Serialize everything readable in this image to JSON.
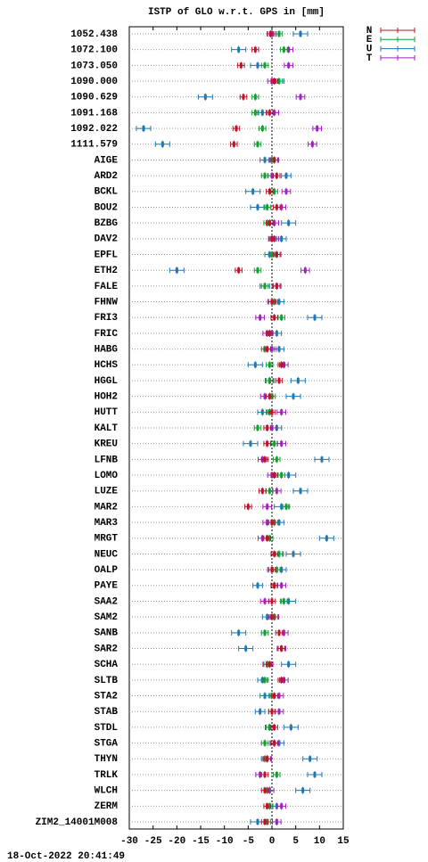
{
  "chart_data": {
    "type": "errorbar-h",
    "title": "ISTP of GLO w.r.t. GPS in [mm]",
    "footer": "18-Oct-2022 20:41:49",
    "categories": [
      "1052.438",
      "1072.100",
      "1073.050",
      "1090.000",
      "1090.629",
      "1091.168",
      "1092.022",
      "1111.579",
      "AIGE",
      "ARD2",
      "BCKL",
      "BOU2",
      "BZBG",
      "DAV2",
      "EPFL",
      "ETH2",
      "FALE",
      "FHNW",
      "FRI3",
      "FRIC",
      "HABG",
      "HCHS",
      "HGGL",
      "HOH2",
      "HUTT",
      "KALT",
      "KREU",
      "LFNB",
      "LOMO",
      "LUZE",
      "MAR2",
      "MAR3",
      "MRGT",
      "NEUC",
      "OALP",
      "PAYE",
      "SAA2",
      "SAM2",
      "SANB",
      "SAR2",
      "SCHA",
      "SLTB",
      "STA2",
      "STAB",
      "STDL",
      "STGA",
      "THYN",
      "TRLK",
      "WLCH",
      "ZERM",
      "ZIM2_14001M008"
    ],
    "xlim": [
      -30,
      15
    ],
    "xticks": [
      -30,
      -25,
      -20,
      -15,
      -10,
      -5,
      0,
      5,
      10,
      15
    ],
    "grid": true,
    "series": [
      {
        "name": "N",
        "color": "#c0102a",
        "values": [
          -0.3,
          -3.5,
          -6.5,
          0.5,
          -6,
          -0.5,
          -7.5,
          -8,
          0.5,
          1,
          -0.5,
          1,
          -0.5,
          0,
          1,
          -7,
          1,
          0,
          0.5,
          -0.5,
          -1,
          2,
          1.5,
          -0.5,
          0,
          -1,
          -1,
          -1.5,
          0.5,
          -2,
          -5,
          0,
          -1,
          0.5,
          0,
          0.5,
          0,
          0,
          1.5,
          2,
          -0.5,
          2,
          0.5,
          0,
          0.5,
          0.5,
          -1,
          -1.5,
          -1.5,
          -1,
          -1.5
        ],
        "errors": [
          0.7,
          0.7,
          0.7,
          0.7,
          0.7,
          0.7,
          0.7,
          0.7,
          0.7,
          0.7,
          0.7,
          0.7,
          0.7,
          0.7,
          0.7,
          0.7,
          0.7,
          0.7,
          0.7,
          0.7,
          0.7,
          0.7,
          0.7,
          0.7,
          0.7,
          0.7,
          0.7,
          0.7,
          0.7,
          0.7,
          0.7,
          0.7,
          0.7,
          0.7,
          0.7,
          0.7,
          0.7,
          0.7,
          0.7,
          0.7,
          0.7,
          0.7,
          0.7,
          0.7,
          0.7,
          0.7,
          0.7,
          0.7,
          0.7,
          0.7,
          0.7
        ]
      },
      {
        "name": "E",
        "color": "#10a030",
        "values": [
          1.5,
          2.5,
          -1.5,
          1.5,
          -3.5,
          -3.5,
          -2,
          -3,
          0,
          -1.5,
          0.5,
          -1,
          -1,
          0,
          0,
          -3,
          -1.5,
          0.5,
          2,
          -0.5,
          -1.5,
          -0.5,
          -0.5,
          0,
          -0.5,
          -3,
          0.5,
          1,
          2,
          -0.5,
          3,
          0.5,
          -0.5,
          1.5,
          1,
          0.5,
          2.5,
          0.5,
          -1.5,
          2,
          -1,
          -1.5,
          0,
          0,
          -0.5,
          -1.5,
          -1.5,
          1,
          -1,
          -0.5,
          -1
        ],
        "errors": [
          0.7,
          0.7,
          0.7,
          0.7,
          0.7,
          0.7,
          0.7,
          0.7,
          0.7,
          0.7,
          0.7,
          0.7,
          0.7,
          0.7,
          0.7,
          0.7,
          0.7,
          0.7,
          0.7,
          0.7,
          0.7,
          0.7,
          0.7,
          0.7,
          0.7,
          0.7,
          0.7,
          0.7,
          0.7,
          0.7,
          0.7,
          0.7,
          0.7,
          0.7,
          0.7,
          0.7,
          0.7,
          0.7,
          0.7,
          0.7,
          0.7,
          0.7,
          0.7,
          0.7,
          0.7,
          0.7,
          0.7,
          0.7,
          0.7,
          0.7,
          0.7
        ]
      },
      {
        "name": "U",
        "color": "#1f78b4",
        "values": [
          6,
          -7,
          -3,
          1.5,
          -14,
          -2,
          -27,
          -23,
          -1.5,
          3,
          -4,
          -3,
          3.5,
          2,
          -0.5,
          -20,
          -1.5,
          1.5,
          9,
          1,
          1.5,
          -3.5,
          5.5,
          4.5,
          -2,
          1,
          -4.5,
          10.5,
          3.5,
          6,
          2,
          1.5,
          11.5,
          4.5,
          2,
          -3,
          3.5,
          -1,
          -7,
          -5.5,
          3.5,
          -2,
          -1.5,
          -2.5,
          4,
          1.5,
          8,
          9,
          6.5,
          1,
          -3
        ],
        "errors": [
          1.5,
          1.5,
          1.5,
          1,
          1.5,
          1,
          1.5,
          1.5,
          1,
          1,
          1.5,
          1.5,
          1.5,
          1,
          1,
          1.5,
          1,
          1,
          1.5,
          1,
          1,
          1.5,
          1.5,
          1.5,
          1,
          1,
          1.5,
          1.5,
          1.5,
          1.5,
          1.5,
          1,
          1.5,
          1.5,
          1,
          1,
          1.5,
          1,
          1.5,
          1.5,
          1.5,
          1,
          1,
          1,
          1.5,
          1,
          1.5,
          1.5,
          1.5,
          1,
          1.5
        ]
      },
      {
        "name": "T",
        "color": "#a020c0",
        "values": [
          0,
          3.5,
          3.5,
          0,
          6,
          0.5,
          9.5,
          8.5,
          0.5,
          0,
          3,
          2,
          0.5,
          0.5,
          1,
          7,
          1,
          0,
          -2.5,
          -1,
          0,
          2.5,
          -0.5,
          -1.5,
          2,
          0,
          2,
          -2,
          0,
          1,
          -1,
          -1,
          -2,
          1.5,
          0,
          2,
          -1.5,
          0.5,
          2.5,
          2,
          -1,
          2.5,
          1.5,
          1.5,
          -0.5,
          0.5,
          -1,
          -2.5,
          -0.5,
          2,
          1
        ],
        "errors": [
          0.9,
          0.9,
          0.9,
          0.9,
          0.9,
          0.9,
          0.9,
          0.9,
          0.9,
          0.9,
          0.9,
          0.9,
          0.9,
          0.9,
          0.9,
          0.9,
          0.9,
          0.9,
          0.9,
          0.9,
          0.9,
          0.9,
          0.9,
          0.9,
          0.9,
          0.9,
          0.9,
          0.9,
          0.9,
          0.9,
          0.9,
          0.9,
          0.9,
          0.9,
          0.9,
          0.9,
          0.9,
          0.9,
          0.9,
          0.9,
          0.9,
          0.9,
          0.9,
          0.9,
          0.9,
          0.9,
          0.9,
          0.9,
          0.9,
          0.9,
          0.9
        ]
      }
    ]
  }
}
